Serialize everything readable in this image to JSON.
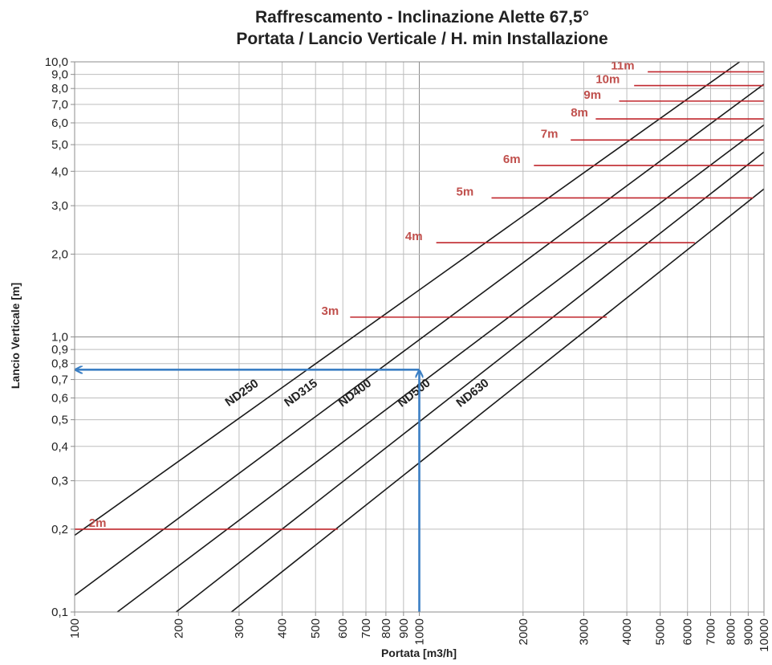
{
  "chart_data": {
    "type": "line",
    "title_line1": "Raffrescamento - Inclinazione Alette 67,5°",
    "title_line2": "Portata / Lancio Verticale / H. min Installazione",
    "xlabel": "Portata [m3/h]",
    "ylabel": "Lancio Verticale [m]",
    "x_scale": "log",
    "y_scale": "log",
    "xlim": [
      100,
      10000
    ],
    "ylim": [
      0.1,
      10
    ],
    "grid": true,
    "x_ticks": [
      {
        "value": 100,
        "label": "100"
      },
      {
        "value": 200,
        "label": "200"
      },
      {
        "value": 300,
        "label": "300"
      },
      {
        "value": 400,
        "label": "400"
      },
      {
        "value": 500,
        "label": "500"
      },
      {
        "value": 600,
        "label": "600"
      },
      {
        "value": 700,
        "label": "700"
      },
      {
        "value": 800,
        "label": "800"
      },
      {
        "value": 900,
        "label": "900"
      },
      {
        "value": 1000,
        "label": "1000"
      },
      {
        "value": 2000,
        "label": "2000"
      },
      {
        "value": 3000,
        "label": "3000"
      },
      {
        "value": 4000,
        "label": "4000"
      },
      {
        "value": 5000,
        "label": "5000"
      },
      {
        "value": 6000,
        "label": "6000"
      },
      {
        "value": 7000,
        "label": "7000"
      },
      {
        "value": 8000,
        "label": "8000"
      },
      {
        "value": 9000,
        "label": "9000"
      },
      {
        "value": 10000,
        "label": "10000"
      }
    ],
    "y_ticks": [
      {
        "value": 0.1,
        "label": "0,1"
      },
      {
        "value": 0.2,
        "label": "0,2"
      },
      {
        "value": 0.3,
        "label": "0,3"
      },
      {
        "value": 0.4,
        "label": "0,4"
      },
      {
        "value": 0.5,
        "label": "0,5"
      },
      {
        "value": 0.6,
        "label": "0,6"
      },
      {
        "value": 0.7,
        "label": "0,7"
      },
      {
        "value": 0.8,
        "label": "0,8"
      },
      {
        "value": 0.9,
        "label": "0,9"
      },
      {
        "value": 1.0,
        "label": "1,0"
      },
      {
        "value": 2.0,
        "label": "2,0"
      },
      {
        "value": 3.0,
        "label": "3,0"
      },
      {
        "value": 4.0,
        "label": "4,0"
      },
      {
        "value": 5.0,
        "label": "5,0"
      },
      {
        "value": 6.0,
        "label": "6,0"
      },
      {
        "value": 7.0,
        "label": "7,0"
      },
      {
        "value": 8.0,
        "label": "8,0"
      },
      {
        "value": 9.0,
        "label": "9,0"
      },
      {
        "value": 10.0,
        "label": "10,0"
      }
    ],
    "series": [
      {
        "name": "ND250",
        "x": [
          100,
          8500
        ],
        "y": [
          0.19,
          10
        ],
        "label_at": {
          "x": 310,
          "y": 0.61
        }
      },
      {
        "name": "ND315",
        "x": [
          100,
          10000
        ],
        "y": [
          0.115,
          8.3
        ],
        "label_at": {
          "x": 460,
          "y": 0.61
        }
      },
      {
        "name": "ND400",
        "x": [
          133,
          10000
        ],
        "y": [
          0.1,
          5.9
        ],
        "label_at": {
          "x": 660,
          "y": 0.61
        }
      },
      {
        "name": "ND500",
        "x": [
          197,
          10000
        ],
        "y": [
          0.1,
          4.7
        ],
        "label_at": {
          "x": 980,
          "y": 0.61
        }
      },
      {
        "name": "ND630",
        "x": [
          285,
          10000
        ],
        "y": [
          0.1,
          3.45
        ],
        "label_at": {
          "x": 1450,
          "y": 0.61
        }
      }
    ],
    "installation_heights": [
      {
        "label": "2m",
        "y": 0.2,
        "x_start": 100,
        "x_end": 580,
        "label_x": 110
      },
      {
        "label": "3m",
        "y": 1.18,
        "x_start": 630,
        "x_end": 3500,
        "label_x": 520
      },
      {
        "label": "4m",
        "y": 2.2,
        "x_start": 1120,
        "x_end": 6300,
        "label_x": 910
      },
      {
        "label": "5m",
        "y": 3.2,
        "x_start": 1620,
        "x_end": 9300,
        "label_x": 1280
      },
      {
        "label": "6m",
        "y": 4.2,
        "x_start": 2150,
        "x_end": 10000,
        "label_x": 1750
      },
      {
        "label": "7m",
        "y": 5.2,
        "x_start": 2750,
        "x_end": 10000,
        "label_x": 2250
      },
      {
        "label": "8m",
        "y": 6.2,
        "x_start": 3250,
        "x_end": 10000,
        "label_x": 2750
      },
      {
        "label": "9m",
        "y": 7.2,
        "x_start": 3800,
        "x_end": 10000,
        "label_x": 3000
      },
      {
        "label": "10m",
        "y": 8.2,
        "x_start": 4200,
        "x_end": 10000,
        "label_x": 3250
      },
      {
        "label": "11m",
        "y": 9.2,
        "x_start": 4600,
        "x_end": 10000,
        "label_x": 3600
      }
    ],
    "example": {
      "x": 1000,
      "y": 0.76
    },
    "colors": {
      "series": "#1a1a1a",
      "installation": "#c0272d",
      "installation_label": "#c0504d",
      "example": "#3b7fc4",
      "grid": "#bdbdbd",
      "grid_major": "#8c8c8c",
      "text": "#222222"
    }
  }
}
